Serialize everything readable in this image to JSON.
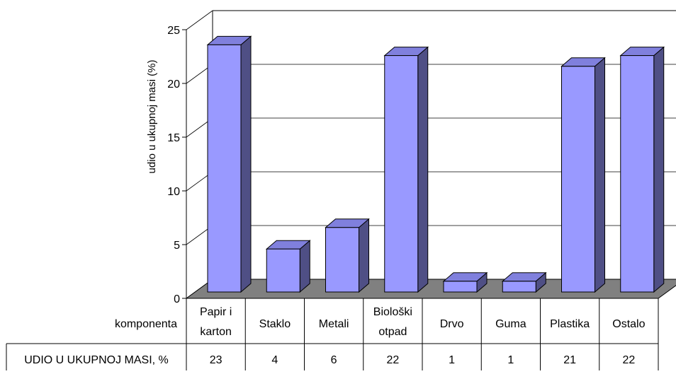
{
  "chart_data": {
    "type": "bar",
    "ylabel": "udio u ukupnoj masi (%)",
    "ylim": [
      0,
      25
    ],
    "yticks": [
      0,
      5,
      10,
      15,
      20,
      25
    ],
    "grid": true,
    "categories": [
      [
        "Papir i",
        "karton"
      ],
      [
        "Staklo"
      ],
      [
        "Metali"
      ],
      [
        "Biološki",
        "otpad"
      ],
      [
        "Drvo"
      ],
      [
        "Guma"
      ],
      [
        "Plastika"
      ],
      [
        "Ostalo"
      ]
    ],
    "series": [
      {
        "name": "UDIO U UKUPNOJ MASI, %",
        "values": [
          23,
          4,
          6,
          22,
          1,
          1,
          21,
          22
        ]
      }
    ],
    "table": {
      "header_label": "komponenta",
      "row_label": "UDIO U UKUPNOJ MASI, %"
    }
  },
  "colors": {
    "bar_front": "#9999ff",
    "bar_side": "#4f4f85",
    "bar_top": "#8080dd",
    "floor": "#808080",
    "outline": "#000000"
  }
}
